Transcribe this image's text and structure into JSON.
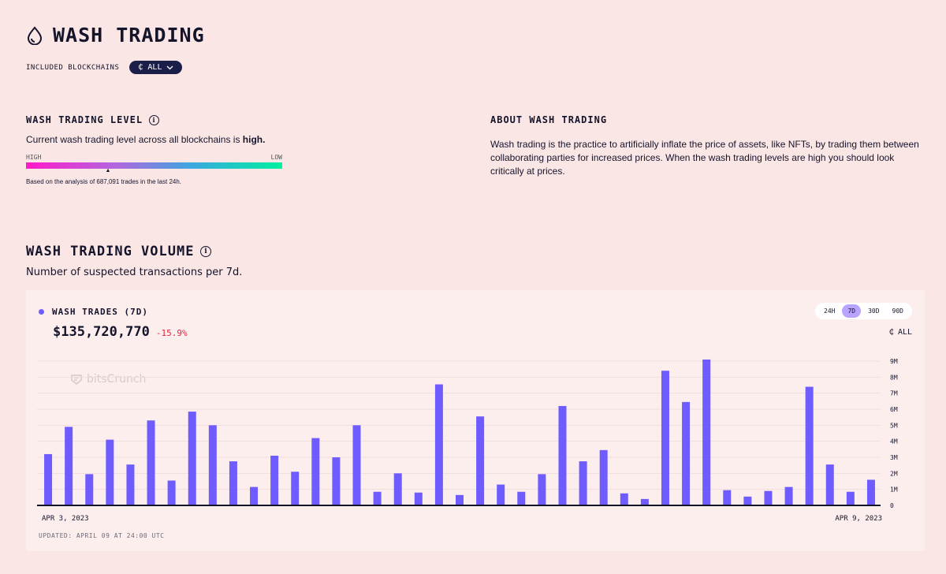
{
  "header": {
    "title": "WASH TRADING",
    "icon": "drop-icon"
  },
  "blockchains": {
    "label": "INCLUDED BLOCKCHAINS",
    "selected": "ALL",
    "icon": "currency-icon"
  },
  "level": {
    "heading": "WASH TRADING LEVEL",
    "desc_prefix": "Current wash trading level across all blockchains is ",
    "desc_value": "high.",
    "high_label": "HIGH",
    "low_label": "LOW",
    "level_position": 0.32,
    "note": "Based on the analysis of 687,091 trades in the last 24h."
  },
  "about": {
    "heading": "ABOUT WASH TRADING",
    "text": "Wash trading is the practice to artificially inflate the price of assets, like NFTs, by trading them between collaborating parties for increased prices. When the wash trading levels are high you should look critically at prices."
  },
  "volume": {
    "heading": "WASH TRADING VOLUME",
    "subtitle": "Number of suspected transactions per 7d.",
    "legend": "WASH TRADES (7D)",
    "total": "$135,720,770",
    "change": "-15.9%",
    "ranges": [
      "24H",
      "7D",
      "30D",
      "90D"
    ],
    "active_range": "7D",
    "chain_filter": "ALL",
    "watermark": "bitsCrunch",
    "updated": "UPDATED: APRIL 09 AT 24:00 UTC",
    "colors": {
      "bar": "#6f5cff",
      "change": "#e0263a"
    }
  },
  "chart_data": {
    "type": "bar",
    "x_start_label": "APR 3, 2023",
    "x_end_label": "APR 9, 2023",
    "y_ticks": [
      "0",
      "1M",
      "2M",
      "3M",
      "4M",
      "5M",
      "6M",
      "7M",
      "8M",
      "9M"
    ],
    "ylim": [
      0,
      9000000
    ],
    "values": [
      3200000,
      4900000,
      1950000,
      4100000,
      2550000,
      5300000,
      1550000,
      5850000,
      5000000,
      2750000,
      1150000,
      3100000,
      2100000,
      4200000,
      3000000,
      5000000,
      850000,
      2000000,
      800000,
      7550000,
      650000,
      5550000,
      1300000,
      850000,
      1950000,
      6200000,
      2750000,
      3450000,
      750000,
      400000,
      8400000,
      6450000,
      9100000,
      950000,
      550000,
      900000,
      1150000,
      7400000,
      2550000,
      850000,
      1600000
    ]
  }
}
